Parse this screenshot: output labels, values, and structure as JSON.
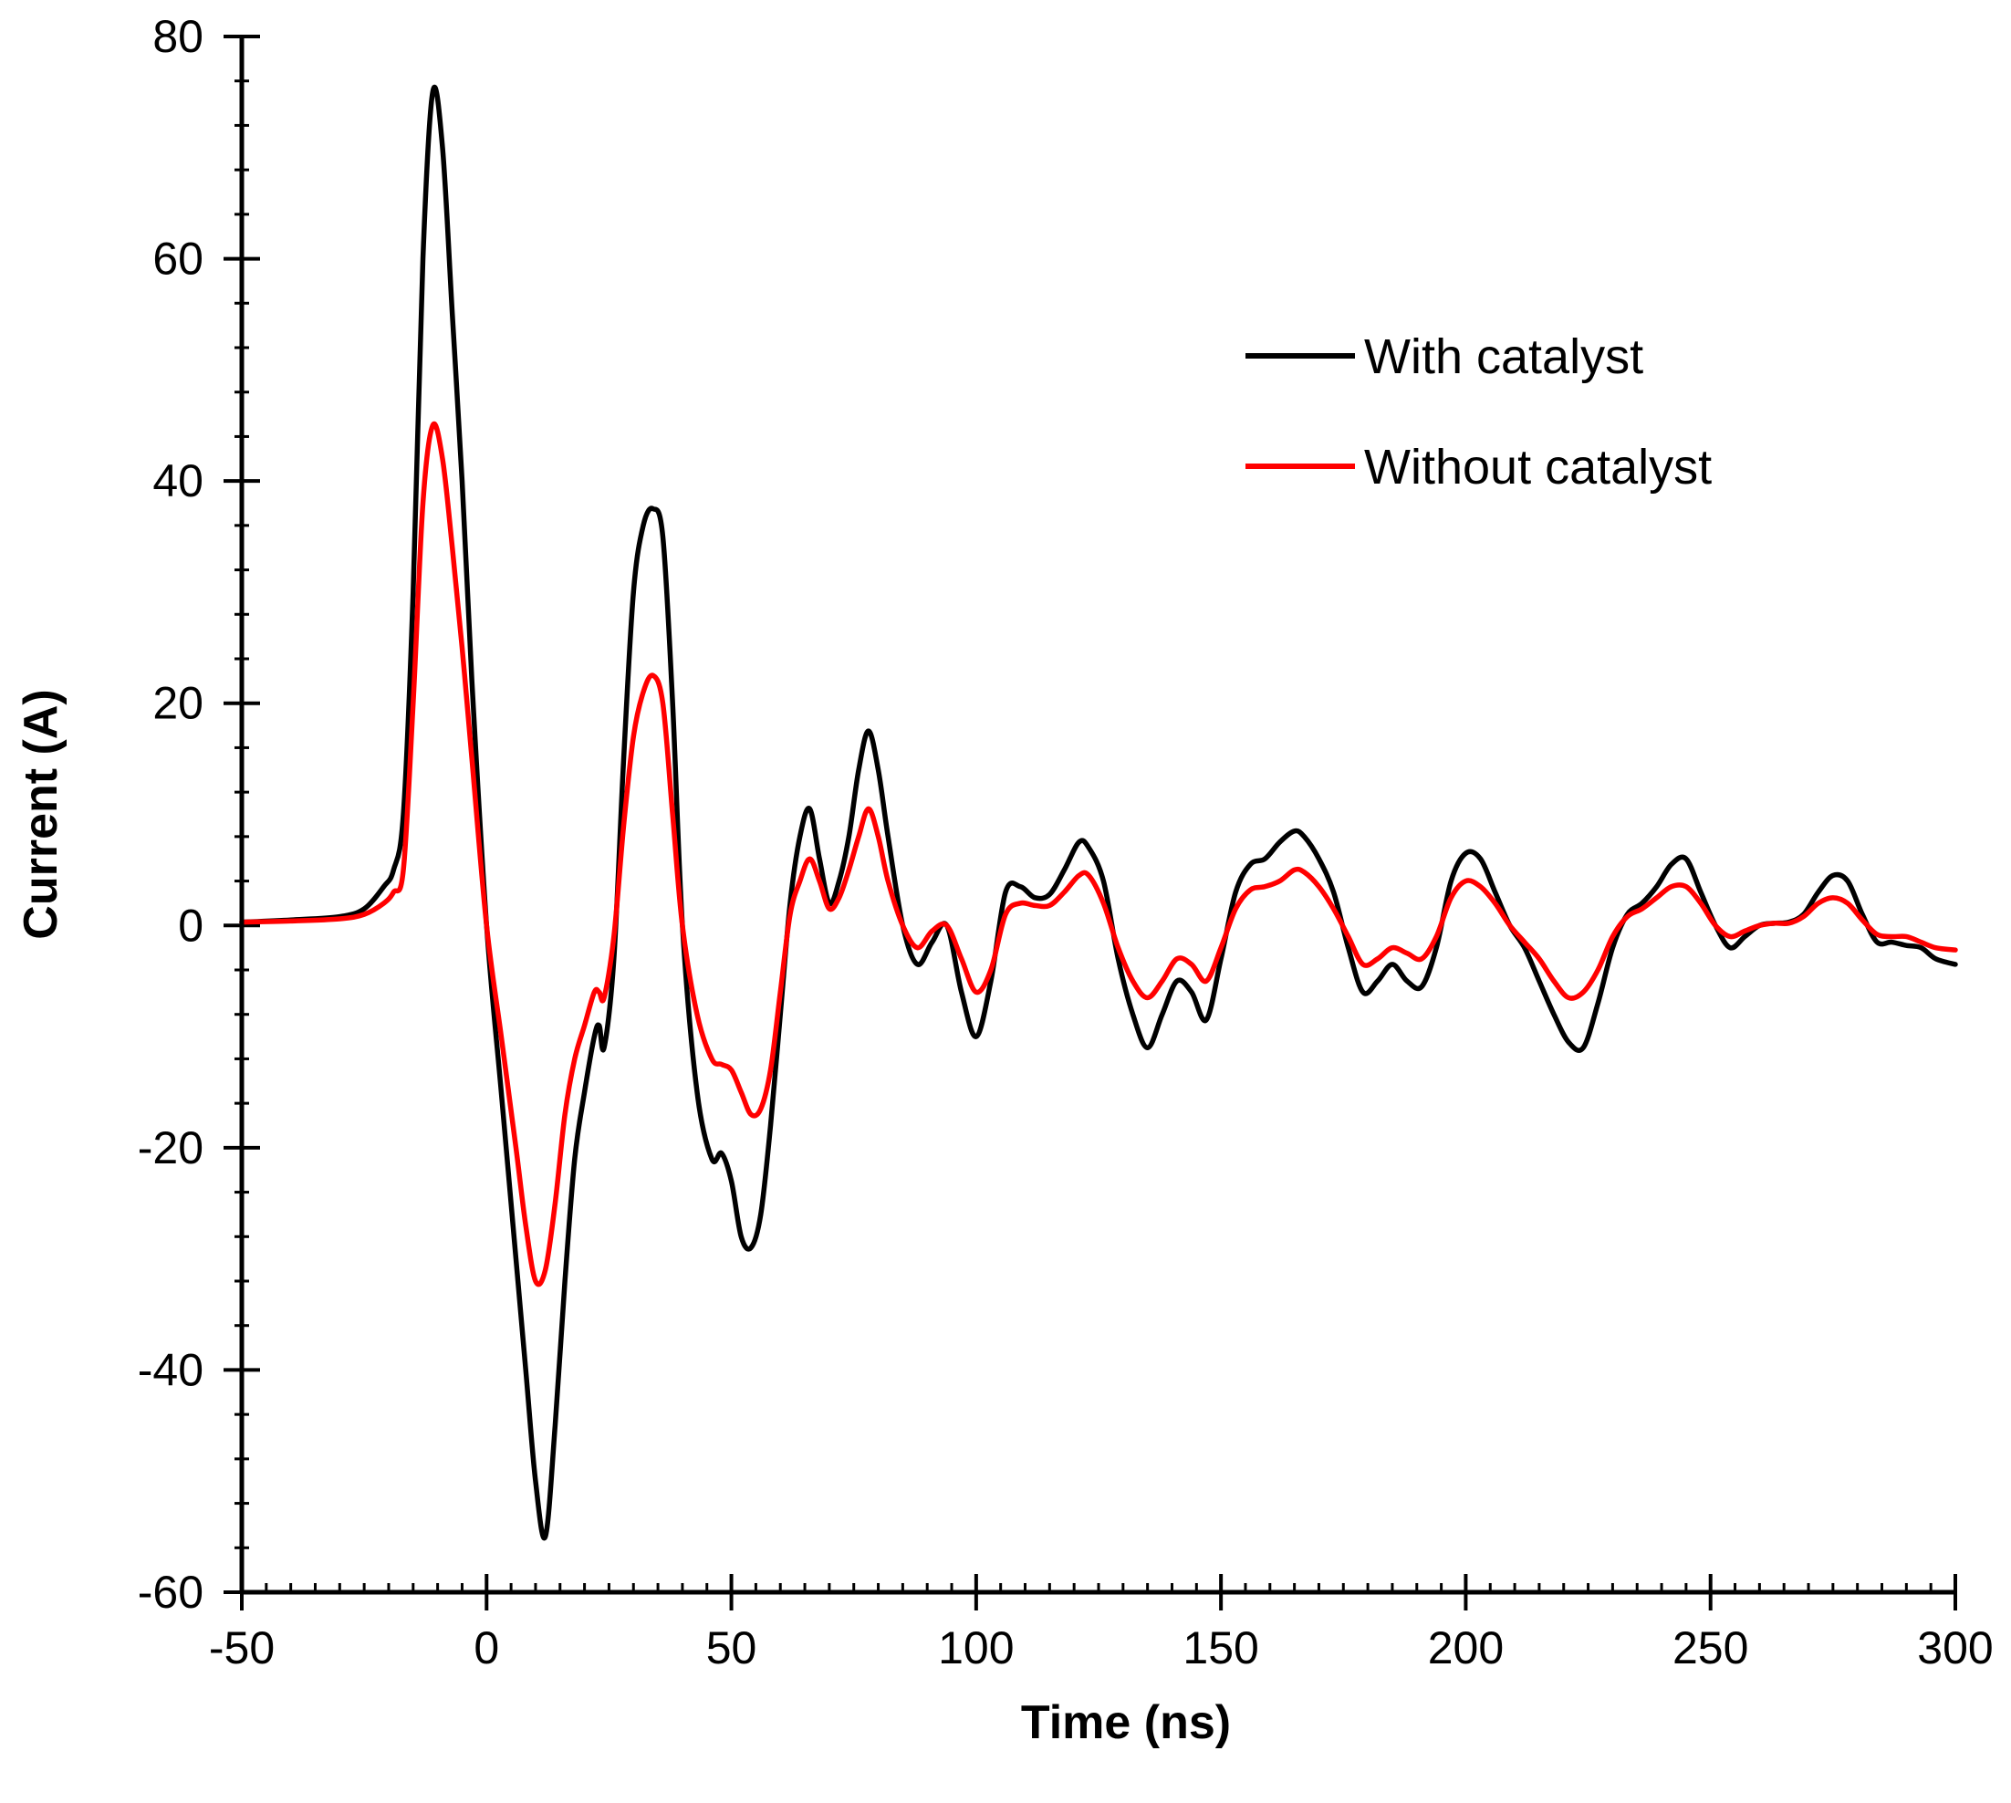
{
  "chart_data": {
    "type": "line",
    "title": "",
    "xlabel": "Time (ns)",
    "ylabel": "Current (A)",
    "xlim": [
      -50,
      300
    ],
    "ylim": [
      -60,
      80
    ],
    "x_major_ticks": [
      -50,
      0,
      50,
      100,
      150,
      200,
      250,
      300
    ],
    "x_tick_labels": [
      "-50",
      "0",
      "50",
      "100",
      "150",
      "200",
      "250",
      "300"
    ],
    "x_minor_step": 5,
    "y_major_ticks": [
      -60,
      -40,
      -20,
      0,
      20,
      40,
      60,
      80
    ],
    "y_tick_labels": [
      "-60",
      "-40",
      "-20",
      "0",
      "20",
      "40",
      "60",
      "80"
    ],
    "y_minor_step": 4,
    "grid": false,
    "legend_position": "top-right",
    "series": [
      {
        "name": "With catalyst",
        "color": "#000000",
        "x": [
          -50,
          -40,
          -30,
          -25,
          -21,
          -19,
          -17,
          -15,
          -13,
          -11,
          -9,
          -7,
          -5,
          -3,
          0,
          3,
          6,
          8,
          10,
          12,
          14,
          16,
          18,
          20,
          22,
          23,
          24,
          26,
          28,
          30,
          32,
          34,
          36,
          38,
          40,
          43,
          46,
          48,
          50,
          52,
          54,
          56,
          58,
          60,
          62,
          64,
          66,
          68,
          70,
          72,
          74,
          76,
          78,
          80,
          82,
          85,
          88,
          91,
          94,
          97,
          100,
          103,
          106,
          109,
          112,
          115,
          118,
          121,
          123,
          126,
          129,
          132,
          135,
          138,
          141,
          144,
          147,
          150,
          153,
          156,
          159,
          162,
          165,
          167,
          170,
          173,
          176,
          179,
          182,
          185,
          188,
          191,
          194,
          197,
          200,
          203,
          206,
          209,
          212,
          215,
          218,
          221,
          224,
          227,
          230,
          233,
          236,
          239,
          242,
          245,
          248,
          251,
          254,
          257,
          260,
          263,
          266,
          269,
          272,
          275,
          278,
          281,
          284,
          287,
          290,
          293,
          296,
          300
        ],
        "y": [
          0.3,
          0.5,
          0.8,
          1.5,
          3.5,
          5.0,
          10,
          30,
          60,
          75,
          70,
          55,
          40,
          22,
          0,
          -15,
          -30,
          -40,
          -50,
          -55,
          -45,
          -32,
          -21,
          -15,
          -10,
          -9,
          -11,
          -3,
          15,
          30,
          36,
          37.5,
          35,
          20,
          0,
          -15,
          -21,
          -20.5,
          -23,
          -28,
          -29,
          -26,
          -18,
          -8,
          2,
          8,
          10.5,
          6,
          2,
          4,
          8,
          14,
          17.5,
          14,
          8,
          0,
          -3.5,
          -1.5,
          0,
          -6,
          -10,
          -5,
          3,
          3.5,
          2.5,
          2.8,
          5,
          7.5,
          7,
          4,
          -3,
          -8,
          -11,
          -8,
          -5,
          -6,
          -8.5,
          -3,
          3,
          5.5,
          6,
          7.5,
          8.5,
          8,
          6,
          3,
          -2,
          -6,
          -5,
          -3.5,
          -5,
          -5.5,
          -2,
          4,
          6.5,
          6,
          3,
          0,
          -2,
          -5,
          -8,
          -10.5,
          -11,
          -7,
          -2,
          1,
          2,
          3.5,
          5.5,
          6,
          3,
          0,
          -2,
          -1,
          0,
          0.2,
          0.3,
          1,
          3,
          4.5,
          4,
          1,
          -1.5,
          -1.5,
          -1.8,
          -2,
          -3,
          -3.5
        ]
      },
      {
        "name": "Without catalyst",
        "color": "#ff0000",
        "x": [
          -50,
          -40,
          -30,
          -25,
          -21,
          -19,
          -17,
          -15,
          -13,
          -11,
          -9,
          -7,
          -5,
          -3,
          0,
          3,
          6,
          8,
          10,
          12,
          14,
          16,
          18,
          20,
          22,
          23,
          24,
          26,
          28,
          30,
          32,
          34,
          36,
          38,
          40,
          43,
          46,
          48,
          50,
          52,
          54,
          56,
          58,
          60,
          62,
          64,
          66,
          68,
          70,
          72,
          74,
          76,
          78,
          80,
          82,
          85,
          88,
          91,
          94,
          97,
          100,
          103,
          106,
          109,
          112,
          115,
          118,
          121,
          123,
          126,
          129,
          132,
          135,
          138,
          141,
          144,
          147,
          150,
          153,
          156,
          159,
          162,
          165,
          167,
          170,
          173,
          176,
          179,
          182,
          185,
          188,
          191,
          194,
          197,
          200,
          203,
          206,
          209,
          212,
          215,
          218,
          221,
          224,
          227,
          230,
          233,
          236,
          239,
          242,
          245,
          248,
          251,
          254,
          257,
          260,
          263,
          266,
          269,
          272,
          275,
          278,
          281,
          284,
          287,
          290,
          293,
          296,
          300
        ],
        "y": [
          0.3,
          0.4,
          0.6,
          1.0,
          2.0,
          3.0,
          5,
          20,
          38,
          45,
          42,
          34,
          25,
          15,
          0,
          -10,
          -20,
          -27,
          -32,
          -31,
          -25,
          -17,
          -12,
          -9,
          -6,
          -6,
          -6.5,
          -1,
          9,
          17,
          21,
          22.5,
          20,
          10,
          0,
          -8,
          -12,
          -12.5,
          -13,
          -15,
          -17,
          -16.5,
          -13,
          -6,
          1,
          4,
          6,
          4,
          1.5,
          2.5,
          5,
          8,
          10.5,
          8,
          4,
          0,
          -2,
          -0.5,
          0,
          -3,
          -6,
          -4,
          1,
          2,
          1.8,
          1.8,
          3,
          4.5,
          4.5,
          2,
          -2,
          -5,
          -6.5,
          -5,
          -3,
          -3.5,
          -5,
          -2,
          1.5,
          3.2,
          3.5,
          4,
          5,
          4.8,
          3.5,
          1.5,
          -1,
          -3.5,
          -3,
          -2,
          -2.5,
          -3,
          -1,
          2.5,
          4,
          3.5,
          2,
          0,
          -1.5,
          -3,
          -5,
          -6.5,
          -6,
          -4,
          -1,
          0.8,
          1.5,
          2.5,
          3.5,
          3.5,
          2,
          0,
          -1,
          -0.5,
          0,
          0.2,
          0.2,
          0.8,
          2,
          2.5,
          2,
          0.5,
          -0.8,
          -1,
          -1,
          -1.5,
          -2,
          -2.2
        ]
      }
    ]
  }
}
